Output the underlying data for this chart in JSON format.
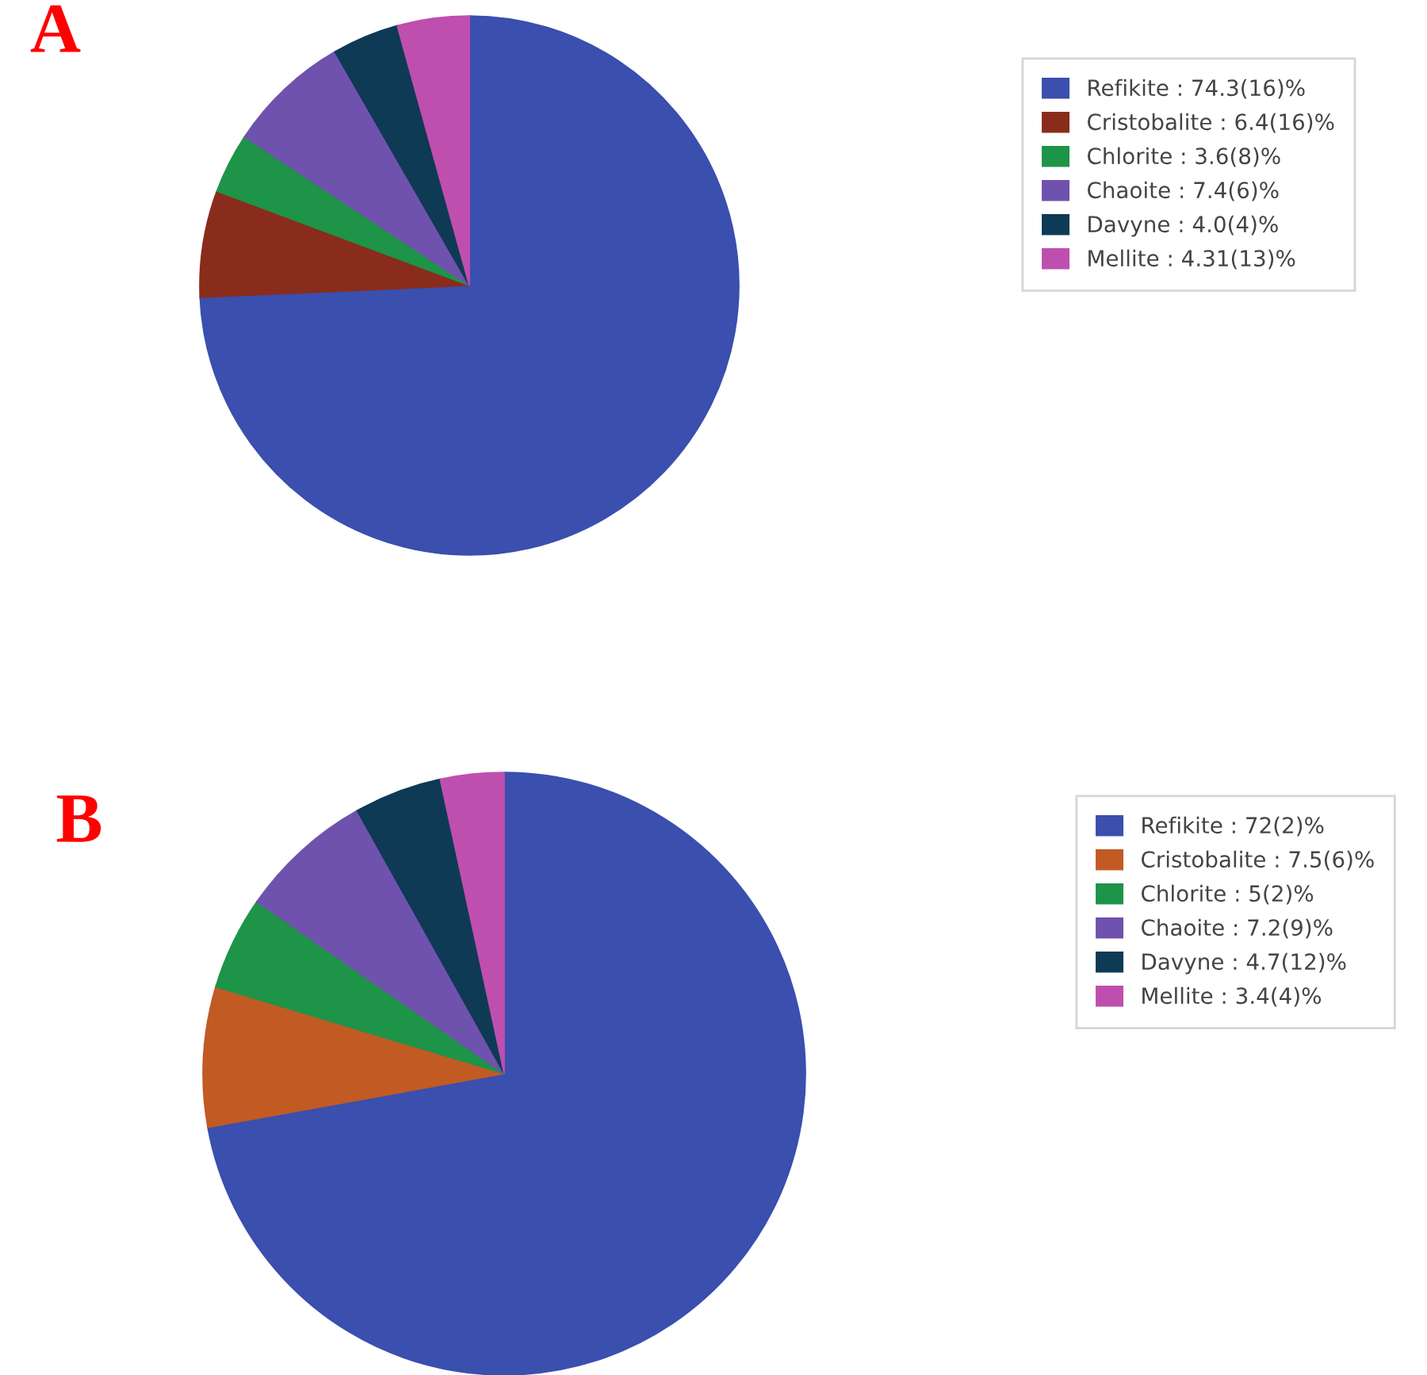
{
  "chart_data": [
    {
      "type": "pie",
      "title": "A",
      "categories": [
        "Refikite : 74.3(16)%",
        "Cristobalite : 6.4(16)%",
        "Chlorite : 3.6(8)%",
        "Chaoite : 7.4(6)%",
        "Davyne : 4.0(4)%",
        "Mellite : 4.31(13)%"
      ],
      "values": [
        74.3,
        6.4,
        3.6,
        7.4,
        4.0,
        4.31
      ],
      "colors": [
        "#3a4fae",
        "#8a2c1c",
        "#1e9448",
        "#6f52ad",
        "#0e3a56",
        "#bf4fae"
      ],
      "legend": "top right"
    },
    {
      "type": "pie",
      "title": "B",
      "categories": [
        "Refikite : 72(2)%",
        "Cristobalite : 7.5(6)%",
        "Chlorite : 5(2)%",
        "Chaoite : 7.2(9)%",
        "Davyne : 4.7(12)%",
        "Mellite : 3.4(4)%"
      ],
      "values": [
        72,
        7.5,
        5,
        7.2,
        4.7,
        3.4
      ],
      "colors": [
        "#3a4fae",
        "#c25a24",
        "#1e9448",
        "#6f52ad",
        "#0e3a56",
        "#bf4fae"
      ],
      "legend": "top right"
    }
  ]
}
